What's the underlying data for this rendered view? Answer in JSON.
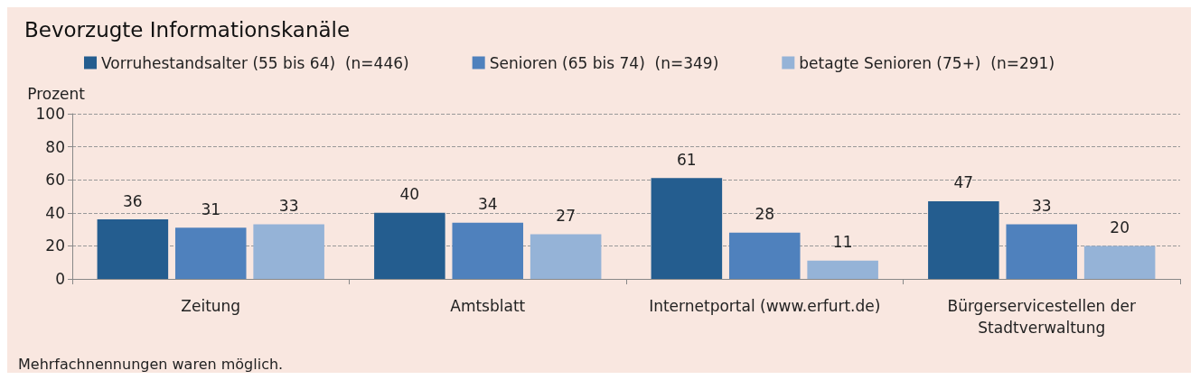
{
  "chart_data": {
    "type": "bar",
    "title": "Bevorzugte Informationskanäle",
    "ylabel": "Prozent",
    "categories": [
      "Zeitung",
      "Amtsblatt",
      "Internetportal (www.erfurt.de)",
      "Bürgerservicestellen der\nStadtverwaltung"
    ],
    "series": [
      {
        "name": "Vorruhestandsalter (55 bis 64)  (n=446)",
        "color": "#245d8f",
        "values": [
          36,
          40,
          61,
          47
        ]
      },
      {
        "name": "Senioren (65 bis 74)  (n=349)",
        "color": "#4f81bd",
        "values": [
          31,
          34,
          28,
          33
        ]
      },
      {
        "name": "betagte Senioren (75+)  (n=291)",
        "color": "#95b3d7",
        "values": [
          33,
          27,
          11,
          20
        ]
      }
    ],
    "ylim": [
      0,
      100
    ],
    "yticks": [
      0,
      20,
      40,
      60,
      80,
      100
    ],
    "grid": "y",
    "legend": "top",
    "data_labels": true,
    "annotations": [
      "Mehrfachnennungen waren möglich."
    ]
  }
}
